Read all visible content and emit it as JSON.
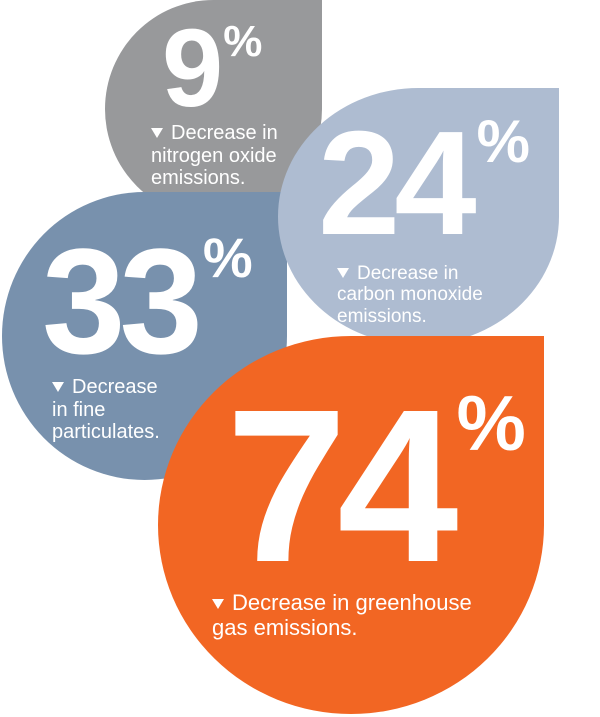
{
  "colors": {
    "nitrogen": "#98999b",
    "carbon": "#aebcd1",
    "particulates": "#7891ad",
    "greenhouse": "#f26623",
    "text": "#ffffff"
  },
  "icons": {
    "caption_marker": "down-triangle-icon"
  },
  "stats": [
    {
      "id": "nitrogen",
      "value": "9",
      "unit": "%",
      "lines": [
        "Decrease in",
        "nitrogen oxide",
        "emissions."
      ]
    },
    {
      "id": "carbon",
      "value": "24",
      "unit": "%",
      "lines": [
        "Decrease in",
        "carbon monoxide",
        "emissions."
      ]
    },
    {
      "id": "particulates",
      "value": "33",
      "unit": "%",
      "lines": [
        "Decrease",
        "in fine",
        "particulates."
      ]
    },
    {
      "id": "greenhouse",
      "value": "74",
      "unit": "%",
      "lines": [
        "Decrease in greenhouse",
        "gas emissions."
      ]
    }
  ]
}
